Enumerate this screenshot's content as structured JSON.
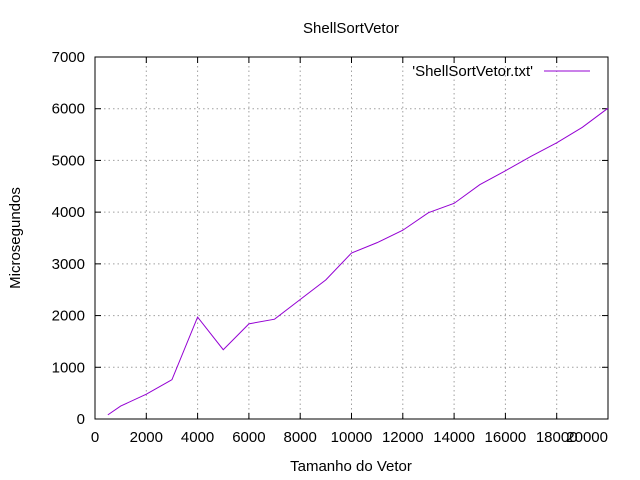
{
  "chart_data": {
    "type": "line",
    "title": "ShellSortVetor",
    "xlabel": "Tamanho do Vetor",
    "ylabel": "Microsegundos",
    "xlim": [
      0,
      20000
    ],
    "ylim": [
      0,
      7000
    ],
    "xticks": [
      0,
      2000,
      4000,
      6000,
      8000,
      10000,
      12000,
      14000,
      16000,
      18000,
      20000
    ],
    "yticks": [
      0,
      1000,
      2000,
      3000,
      4000,
      5000,
      6000,
      7000
    ],
    "grid": true,
    "legend_position": "top-right",
    "series": [
      {
        "name": "'ShellSortVetor.txt'",
        "color": "#9400d3",
        "x": [
          500,
          1000,
          2000,
          3000,
          4000,
          5000,
          6000,
          7000,
          8000,
          9000,
          10000,
          11000,
          12000,
          13000,
          14000,
          15000,
          16000,
          17000,
          18000,
          19000,
          20000
        ],
        "y": [
          80,
          250,
          480,
          760,
          1970,
          1340,
          1840,
          1930,
          2310,
          2690,
          3210,
          3410,
          3650,
          3990,
          4170,
          4530,
          4800,
          5080,
          5340,
          5640,
          6010
        ]
      }
    ]
  }
}
